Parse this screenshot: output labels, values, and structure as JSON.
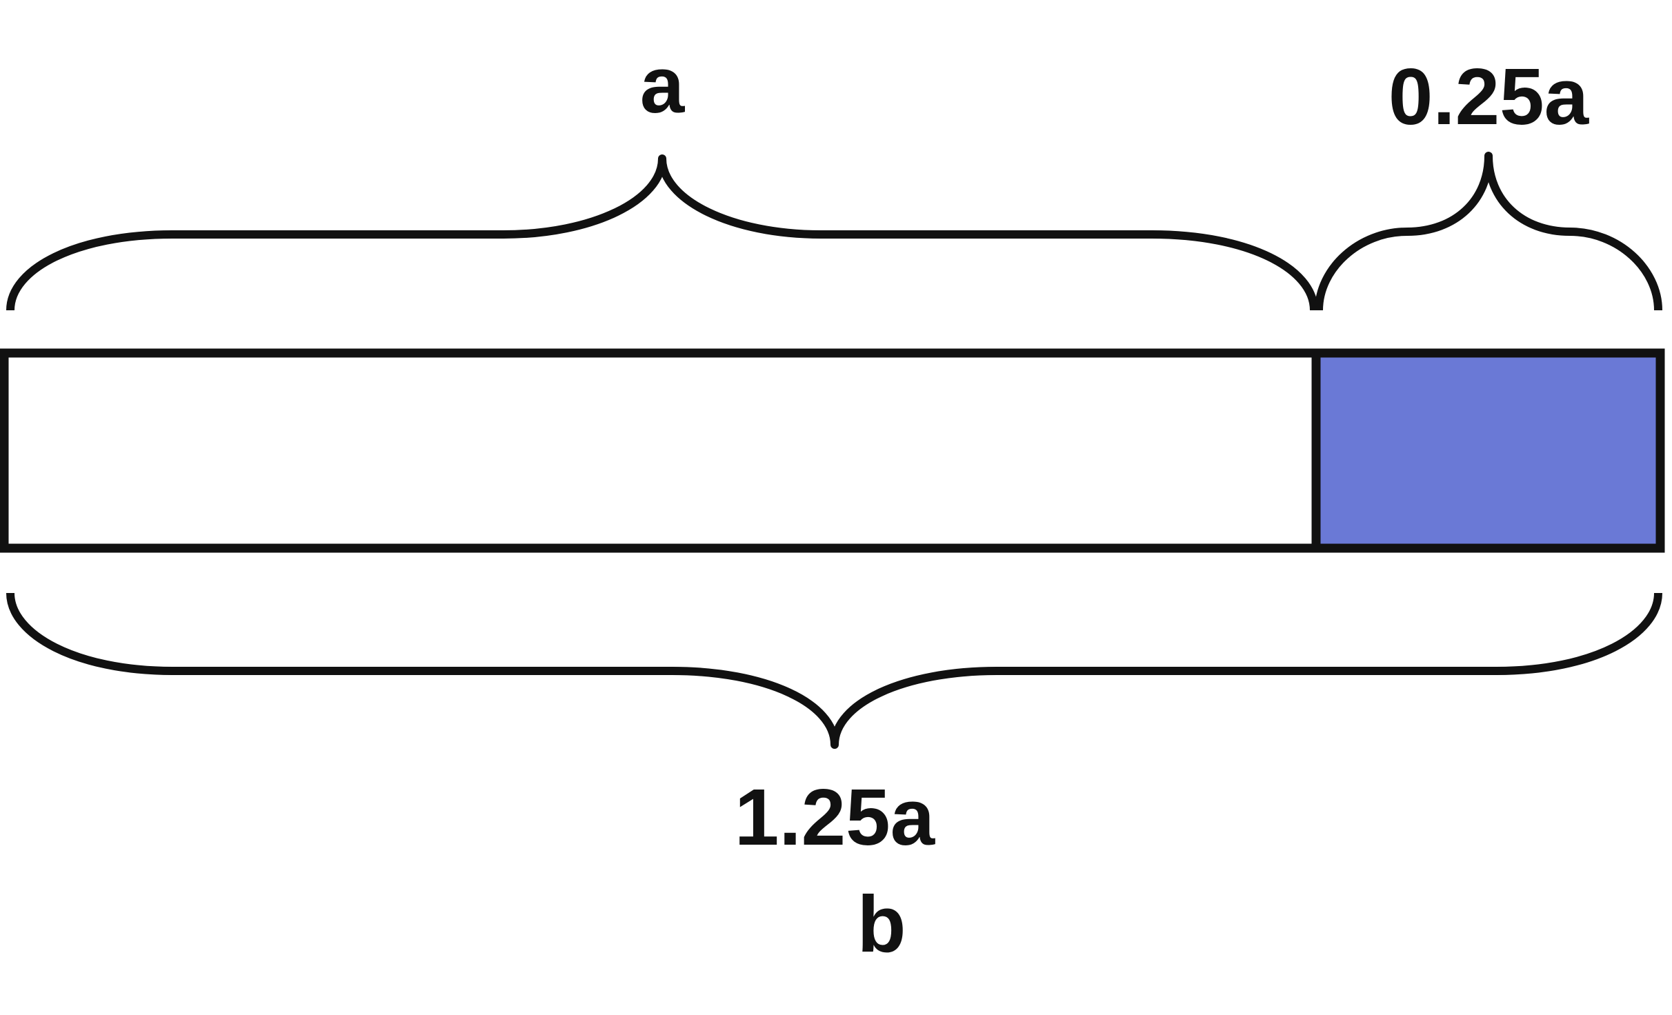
{
  "tape_diagram": {
    "top_labels": {
      "whole": "a",
      "part": "0.25a"
    },
    "bottom_labels": {
      "total": "1.25a",
      "variable": "b"
    },
    "segments": [
      {
        "value": 1,
        "fill": "#ffffff"
      },
      {
        "value": 0.25,
        "fill": "#6a79d6"
      }
    ]
  }
}
